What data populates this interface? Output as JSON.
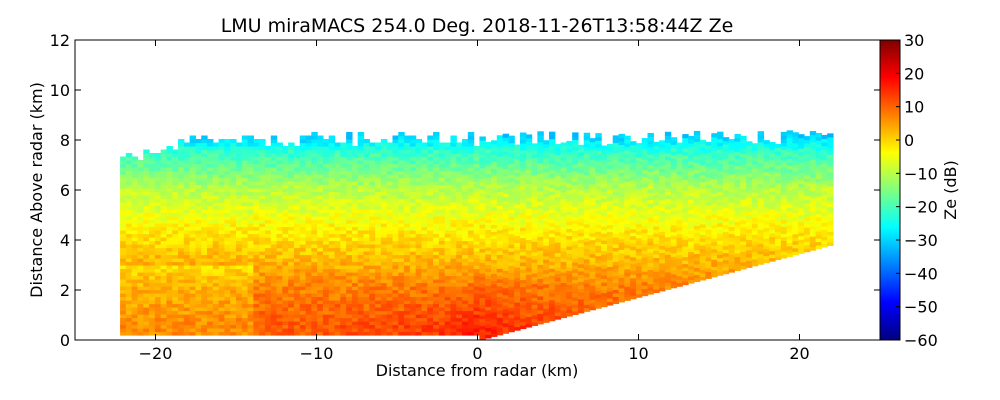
{
  "chart_data": {
    "type": "heatmap",
    "title": "LMU miraMACS 254.0 Deg. 2018-11-26T13:58:44Z  Ze",
    "xlabel": "Distance from radar (km)",
    "ylabel": "Distance Above radar  (km)",
    "xlim": [
      -25,
      25
    ],
    "ylim": [
      0,
      12
    ],
    "xticks": [
      -20,
      -10,
      0,
      10,
      20
    ],
    "xtick_labels": [
      "−20",
      "−10",
      "0",
      "10",
      "20"
    ],
    "yticks": [
      0,
      2,
      4,
      6,
      8,
      10,
      12
    ],
    "ytick_labels": [
      "0",
      "2",
      "4",
      "6",
      "8",
      "10",
      "12"
    ],
    "colorbar": {
      "label": "Ze (dB)",
      "colormap": "jet",
      "range": [
        -60,
        30
      ],
      "ticks": [
        -60,
        -50,
        -40,
        -30,
        -20,
        -10,
        0,
        10,
        20,
        30
      ],
      "tick_labels": [
        "−60",
        "−50",
        "−40",
        "−30",
        "−20",
        "−10",
        "0",
        "10",
        "20",
        "30"
      ]
    },
    "scan": {
      "description_units": "km",
      "left_edge_x": -22.2,
      "right_edge_x": 21.8,
      "right_edge_top_y": 3.8,
      "echo_top_km": 8.0,
      "reflectivity_profile": [
        {
          "height_km": 0.5,
          "ze_db": 10
        },
        {
          "height_km": 2.0,
          "ze_db": 7
        },
        {
          "height_km": 4.0,
          "ze_db": -1
        },
        {
          "height_km": 6.0,
          "ze_db": -10
        },
        {
          "height_km": 7.5,
          "ze_db": -22
        },
        {
          "height_km": 8.2,
          "ze_db": -32
        }
      ]
    }
  }
}
